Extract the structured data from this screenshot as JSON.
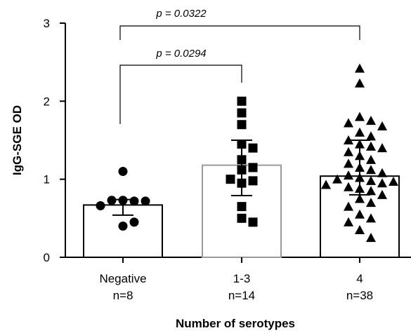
{
  "chart_data": {
    "type": "bar",
    "xlabel": "Number of serotypes",
    "ylabel": "IgG-SGE OD",
    "ylim": [
      0,
      3
    ],
    "yticks": [
      "0",
      "1",
      "2",
      "3"
    ],
    "grid": false,
    "categories": [
      {
        "name": "Negative",
        "n_label": "n=8"
      },
      {
        "name": "1-3",
        "n_label": "n=14"
      },
      {
        "name": "4",
        "n_label": "n=38"
      }
    ],
    "series": [
      {
        "values": [
          0.67,
          1.18,
          1.04
        ],
        "error_low": [
          0.54,
          0.79,
          0.8
        ],
        "error_high": [
          0.74,
          1.5,
          1.5
        ],
        "bar_edge_colors": [
          "#000000",
          "#9a9a9a",
          "#000000"
        ],
        "marker_shapes": [
          "circle",
          "square",
          "triangle"
        ],
        "points": [
          [
            1.1,
            0.73,
            0.72,
            0.73,
            0.72,
            0.66,
            0.4,
            0.45
          ],
          [
            2.0,
            1.85,
            1.7,
            1.45,
            1.4,
            1.25,
            1.15,
            1.12,
            0.95,
            0.98,
            0.65,
            0.5,
            0.45,
            1.0
          ],
          [
            2.42,
            2.23,
            1.8,
            1.75,
            1.72,
            1.68,
            1.6,
            1.55,
            1.5,
            1.45,
            1.42,
            1.4,
            1.35,
            1.3,
            1.25,
            1.2,
            1.15,
            1.12,
            1.08,
            1.05,
            1.02,
            1.0,
            0.98,
            0.97,
            0.95,
            0.93,
            0.9,
            0.88,
            0.85,
            0.8,
            0.75,
            0.7,
            0.65,
            0.55,
            0.5,
            0.45,
            0.35,
            0.25
          ]
        ]
      }
    ],
    "comparisons": [
      {
        "from": "Negative",
        "to": "1-3",
        "label": "p = 0.0294"
      },
      {
        "from": "Negative",
        "to": "4",
        "label": "p = 0.0322"
      }
    ]
  }
}
